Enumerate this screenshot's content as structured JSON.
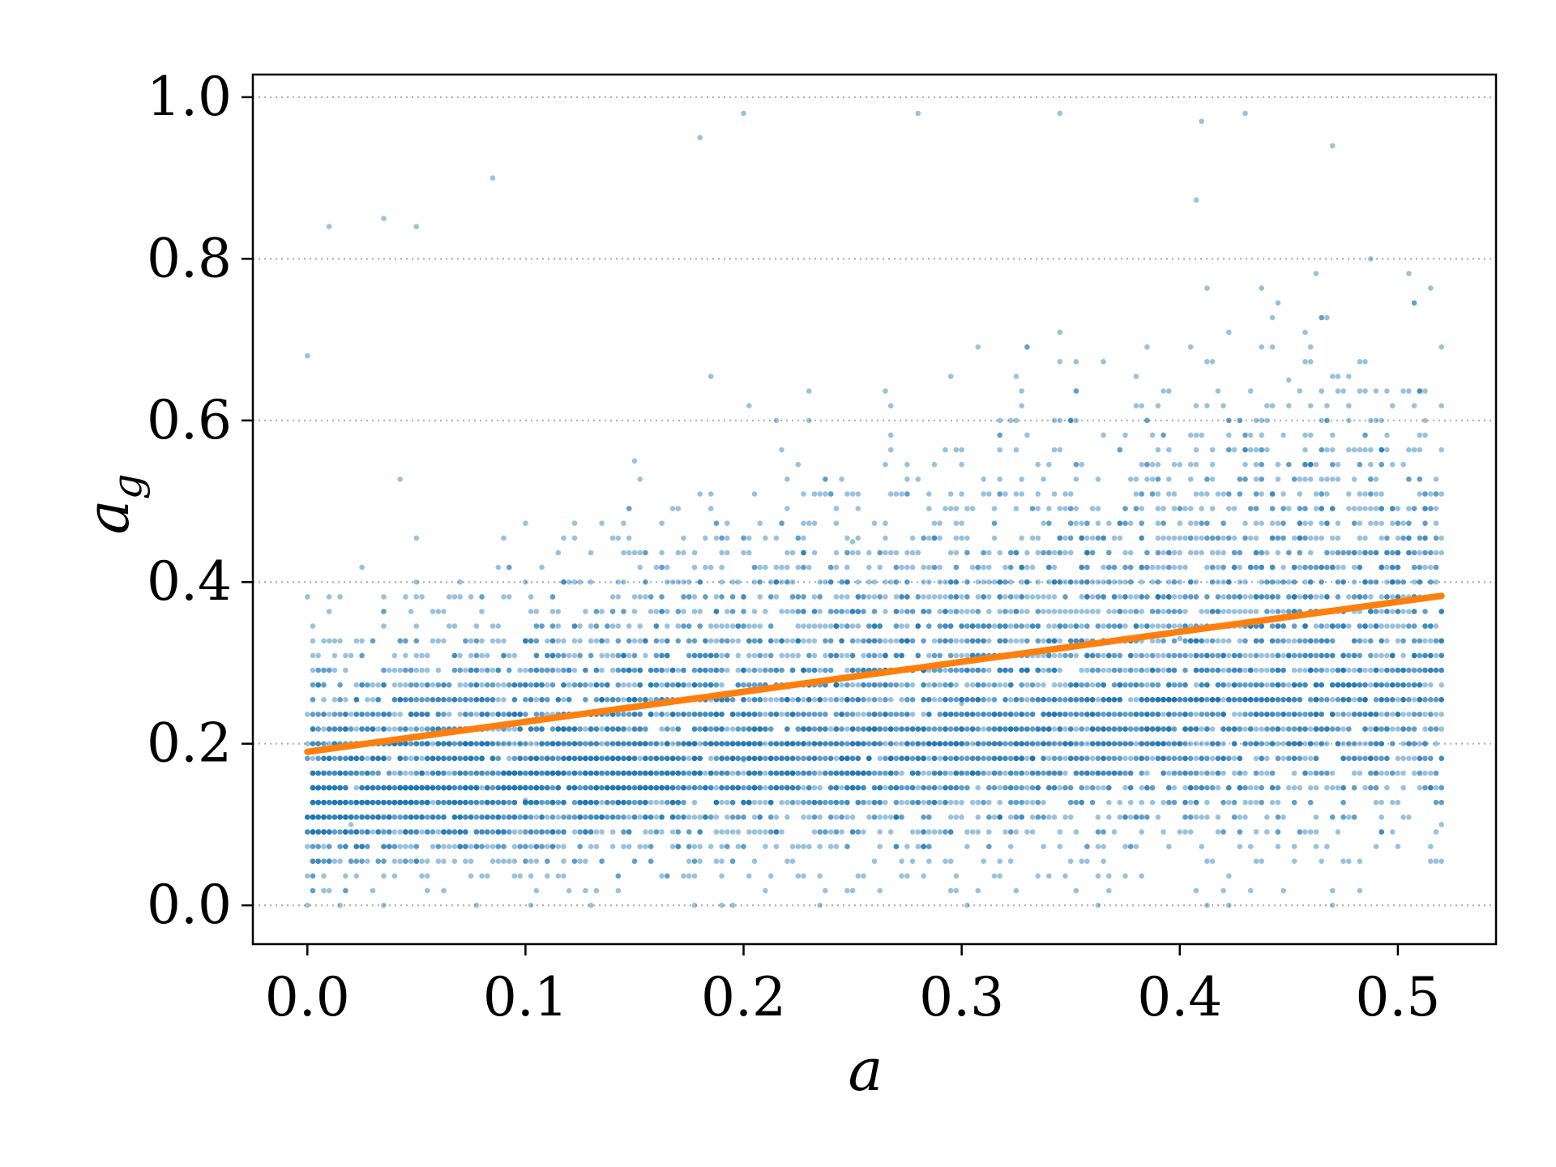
{
  "chart_data": {
    "type": "scatter",
    "title": "",
    "xlabel": "a",
    "ylabel": {
      "base": "a",
      "subscript": "g"
    },
    "xlim": [
      -0.025,
      0.545
    ],
    "ylim": [
      -0.048,
      1.028
    ],
    "x_ticks": [
      0.0,
      0.1,
      0.2,
      0.3,
      0.4,
      0.5
    ],
    "x_tick_labels": [
      "0.0",
      "0.1",
      "0.2",
      "0.3",
      "0.4",
      "0.5"
    ],
    "y_ticks": [
      0.0,
      0.2,
      0.4,
      0.6,
      0.8,
      1.0
    ],
    "y_tick_labels": [
      "0.0",
      "0.2",
      "0.4",
      "0.6",
      "0.8",
      "1.0"
    ],
    "grid": {
      "axis": "y",
      "style": "dotted"
    },
    "colors": {
      "points": "#1f77b4",
      "fit_line": "#ff7f0e",
      "grid": "#b0b0b0"
    },
    "series": [
      {
        "kind": "scatter",
        "x_range": [
          0.0,
          0.52
        ],
        "y_range": [
          0.0,
          0.98
        ],
        "approx_points": 9000,
        "sample": [
          [
            0.0,
            0.68
          ],
          [
            0.01,
            0.84
          ],
          [
            0.035,
            0.85
          ],
          [
            0.05,
            0.84
          ],
          [
            0.085,
            0.9
          ],
          [
            0.2,
            0.98
          ],
          [
            0.18,
            0.95
          ],
          [
            0.28,
            0.98
          ],
          [
            0.345,
            0.98
          ],
          [
            0.43,
            0.98
          ],
          [
            0.47,
            0.94
          ],
          [
            0.41,
            0.97
          ],
          [
            0.0,
            0.0
          ],
          [
            0.47,
            0.0
          ],
          [
            0.52,
            0.1
          ],
          [
            0.02,
            0.1
          ],
          [
            0.1,
            0.13
          ],
          [
            0.2,
            0.18
          ],
          [
            0.3,
            0.25
          ],
          [
            0.4,
            0.33
          ],
          [
            0.5,
            0.38
          ],
          [
            0.25,
            0.45
          ],
          [
            0.15,
            0.55
          ],
          [
            0.35,
            0.6
          ],
          [
            0.45,
            0.65
          ]
        ]
      },
      {
        "kind": "line",
        "x": [
          0.0,
          0.52
        ],
        "y": [
          0.19,
          0.383
        ]
      }
    ]
  }
}
